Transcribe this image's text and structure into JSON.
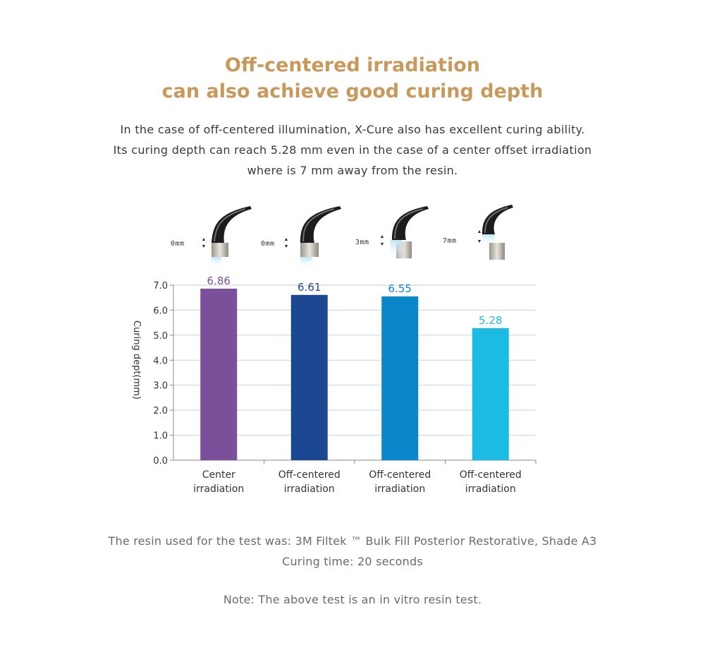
{
  "title": {
    "line1": "Off-centered irradiation",
    "line2": "can also achieve good curing depth"
  },
  "description": {
    "line1": "In the case of off-centered illumination, X-Cure also has excellent curing ability.",
    "line2": "Its curing depth can reach 5.28 mm even in the case of a center offset irradiation",
    "line3": "where is 7 mm away from the resin."
  },
  "tips": [
    {
      "label": "0mm",
      "icon": "curing-light-tip-icon"
    },
    {
      "label": "0mm",
      "icon": "curing-light-tip-icon"
    },
    {
      "label": "3mm",
      "icon": "curing-light-tip-icon"
    },
    {
      "label": "7mm",
      "icon": "curing-light-tip-icon"
    }
  ],
  "chart_data": {
    "type": "bar",
    "title": "",
    "xlabel": "",
    "ylabel": "Curing dept(mm)",
    "ylim": [
      0,
      7
    ],
    "yticks": [
      "0.0",
      "1.0",
      "2.0",
      "3.0",
      "4.0",
      "5.0",
      "6.0",
      "7.0"
    ],
    "grid": true,
    "categories": [
      [
        "Center",
        "irradiation"
      ],
      [
        "Off-centered",
        "irradiation"
      ],
      [
        "Off-centered",
        "irradiation"
      ],
      [
        "Off-centered",
        "irradiation"
      ]
    ],
    "values": [
      6.86,
      6.61,
      6.55,
      5.28
    ],
    "value_labels": [
      "6.86",
      "6.61",
      "6.55",
      "5.28"
    ],
    "colors": [
      "#7b4f9a",
      "#1b4793",
      "#0a86cb",
      "#1bbbe3"
    ]
  },
  "footer": {
    "resin": "The resin used for the test was: 3M Filtek ™ Bulk Fill Posterior Restorative, Shade A3",
    "curing_time": "Curing time: 20 seconds",
    "note": "Note: The above test is an in vitro resin test."
  }
}
